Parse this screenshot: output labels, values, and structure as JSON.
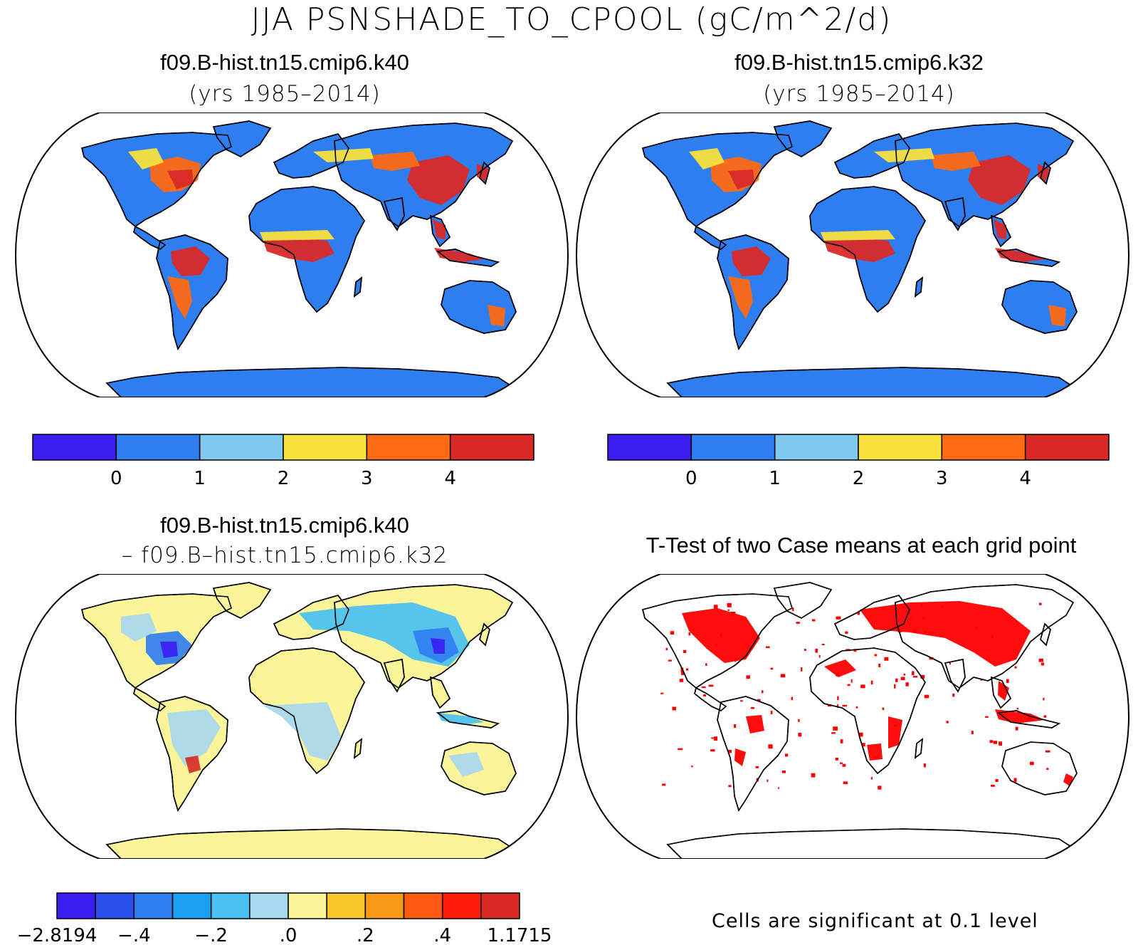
{
  "figure": {
    "title": "JJA PSNSHADE_TO_CPOOL (gC/m^2/d)"
  },
  "panels": {
    "top_left": {
      "title": "f09.B-hist.tn15.cmip6.k40",
      "subtitle": "(yrs 1985–2014)"
    },
    "top_right": {
      "title": "f09.B-hist.tn15.cmip6.k32",
      "subtitle": "(yrs 1985–2014)"
    },
    "bottom_left": {
      "title": "f09.B-hist.tn15.cmip6.k40",
      "subtitle": "– f09.B–hist.tn15.cmip6.k32"
    },
    "bottom_right": {
      "title": "T-Test of two Case means at each grid point",
      "note": "Cells are significant at 0.1 level"
    }
  },
  "colorbars": {
    "mean": {
      "colors": [
        "#3a1ef0",
        "#2f7ef0",
        "#7fc8ee",
        "#f9e23c",
        "#ff6a12",
        "#d92a28"
      ],
      "tick_labels": [
        "0",
        "1",
        "2",
        "3",
        "4"
      ]
    },
    "diff": {
      "colors": [
        "#3a1ef0",
        "#2a4fe8",
        "#2f7ef0",
        "#1aa0f0",
        "#48c0f0",
        "#a8d8ef",
        "#fbf59a",
        "#f9c72a",
        "#f99a14",
        "#ff5a10",
        "#ff1a08",
        "#d92a28"
      ],
      "tick_labels": [
        "−2.8194",
        "−.4",
        "−.2",
        ".0",
        ".2",
        ".4",
        "1.1715"
      ]
    },
    "ttest_color": "#ff0000"
  }
}
